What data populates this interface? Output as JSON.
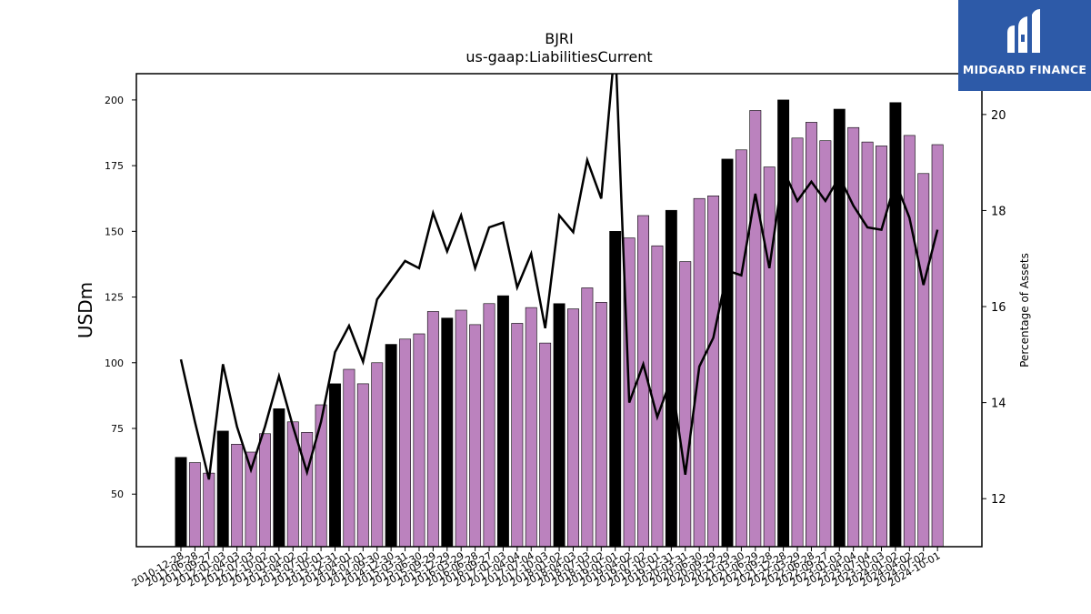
{
  "chart_data": {
    "type": "bar",
    "title": "BJRI",
    "subtitle": "us-gaap:LiabilitiesCurrent",
    "ylabel": "USDm",
    "y2label": "Percentage of Assets",
    "ylim": [
      30,
      210
    ],
    "y2lim": [
      11,
      20.85
    ],
    "yticks": [
      50,
      75,
      100,
      125,
      150,
      175,
      200
    ],
    "y2ticks": [
      12,
      14,
      16,
      18,
      20
    ],
    "x_tick_labels": [
      "2010-12-28",
      "2011-06-28",
      "2011-09-27",
      "2012-01-03",
      "2012-04-03",
      "2012-07-03",
      "2012-10-02",
      "2013-01-01",
      "2013-04-02",
      "2013-07-02",
      "2013-10-01",
      "2013-12-31",
      "2014-04-01",
      "2014-07-01",
      "2014-09-30",
      "2014-12-30",
      "2015-03-31",
      "2015-06-30",
      "2015-09-29",
      "2015-12-29",
      "2016-03-29",
      "2016-06-28",
      "2016-09-27",
      "2017-01-03",
      "2017-04-04",
      "2017-07-04",
      "2017-10-03",
      "2018-01-02",
      "2018-04-03",
      "2018-07-03",
      "2018-10-02",
      "2019-01-01",
      "2019-04-02",
      "2019-07-02",
      "2019-10-01",
      "2019-12-31",
      "2020-03-31",
      "2020-06-30",
      "2020-09-29",
      "2020-12-29",
      "2021-03-30",
      "2021-06-29",
      "2021-09-28",
      "2021-12-28",
      "2022-03-29",
      "2022-06-28",
      "2022-09-27",
      "2023-01-03",
      "2023-04-04",
      "2023-07-04",
      "2023-10-03",
      "2024-01-02",
      "2024-04-02",
      "2024-07-02",
      "2024-10-01"
    ],
    "bar_values": [
      64,
      62,
      58,
      74,
      69,
      66,
      73,
      82.5,
      77.5,
      73.5,
      84,
      92,
      97.5,
      92,
      100,
      107,
      109,
      111,
      119.5,
      117,
      120,
      114.5,
      122.5,
      125.5,
      115,
      121,
      107.5,
      122.5,
      120.5,
      128.5,
      123,
      150,
      147.5,
      156,
      144.5,
      158,
      138.5,
      162.5,
      163.5,
      177.5,
      181,
      196,
      174.5,
      200,
      185.5,
      191.5,
      184.5,
      196.5,
      189.5,
      184,
      182.5,
      199,
      186.5,
      172,
      183
    ],
    "bar_highlight": [
      true,
      false,
      false,
      true,
      false,
      false,
      false,
      true,
      false,
      false,
      false,
      true,
      false,
      false,
      false,
      true,
      false,
      false,
      false,
      true,
      false,
      false,
      false,
      true,
      false,
      false,
      false,
      true,
      false,
      false,
      false,
      true,
      false,
      false,
      false,
      true,
      false,
      false,
      false,
      true,
      false,
      false,
      false,
      true,
      false,
      false,
      false,
      true,
      false,
      false,
      false,
      true,
      false,
      false,
      false
    ],
    "series": [
      {
        "values": [
          14.9,
          13.6,
          12.4,
          14.8,
          13.5,
          12.6,
          13.5,
          14.55,
          13.5,
          12.55,
          13.6,
          15.05,
          15.6,
          14.85,
          16.15,
          16.55,
          16.95,
          16.8,
          17.95,
          17.15,
          17.9,
          16.8,
          17.65,
          17.75,
          16.4,
          17.1,
          15.55,
          17.9,
          17.55,
          19.05,
          18.25,
          21.5,
          14.0,
          14.8,
          13.7,
          14.5,
          12.5,
          14.75,
          15.35,
          16.75,
          16.65,
          18.35,
          16.8,
          18.85,
          18.2,
          18.6,
          18.2,
          18.7,
          18.1,
          17.65,
          17.6,
          18.6,
          17.85,
          16.45,
          17.6
        ]
      }
    ],
    "colors": {
      "bar": "#bb82be",
      "highlight": "#000000",
      "line": "#000000"
    }
  },
  "logo": {
    "text": "MIDGARD FINANCE"
  }
}
